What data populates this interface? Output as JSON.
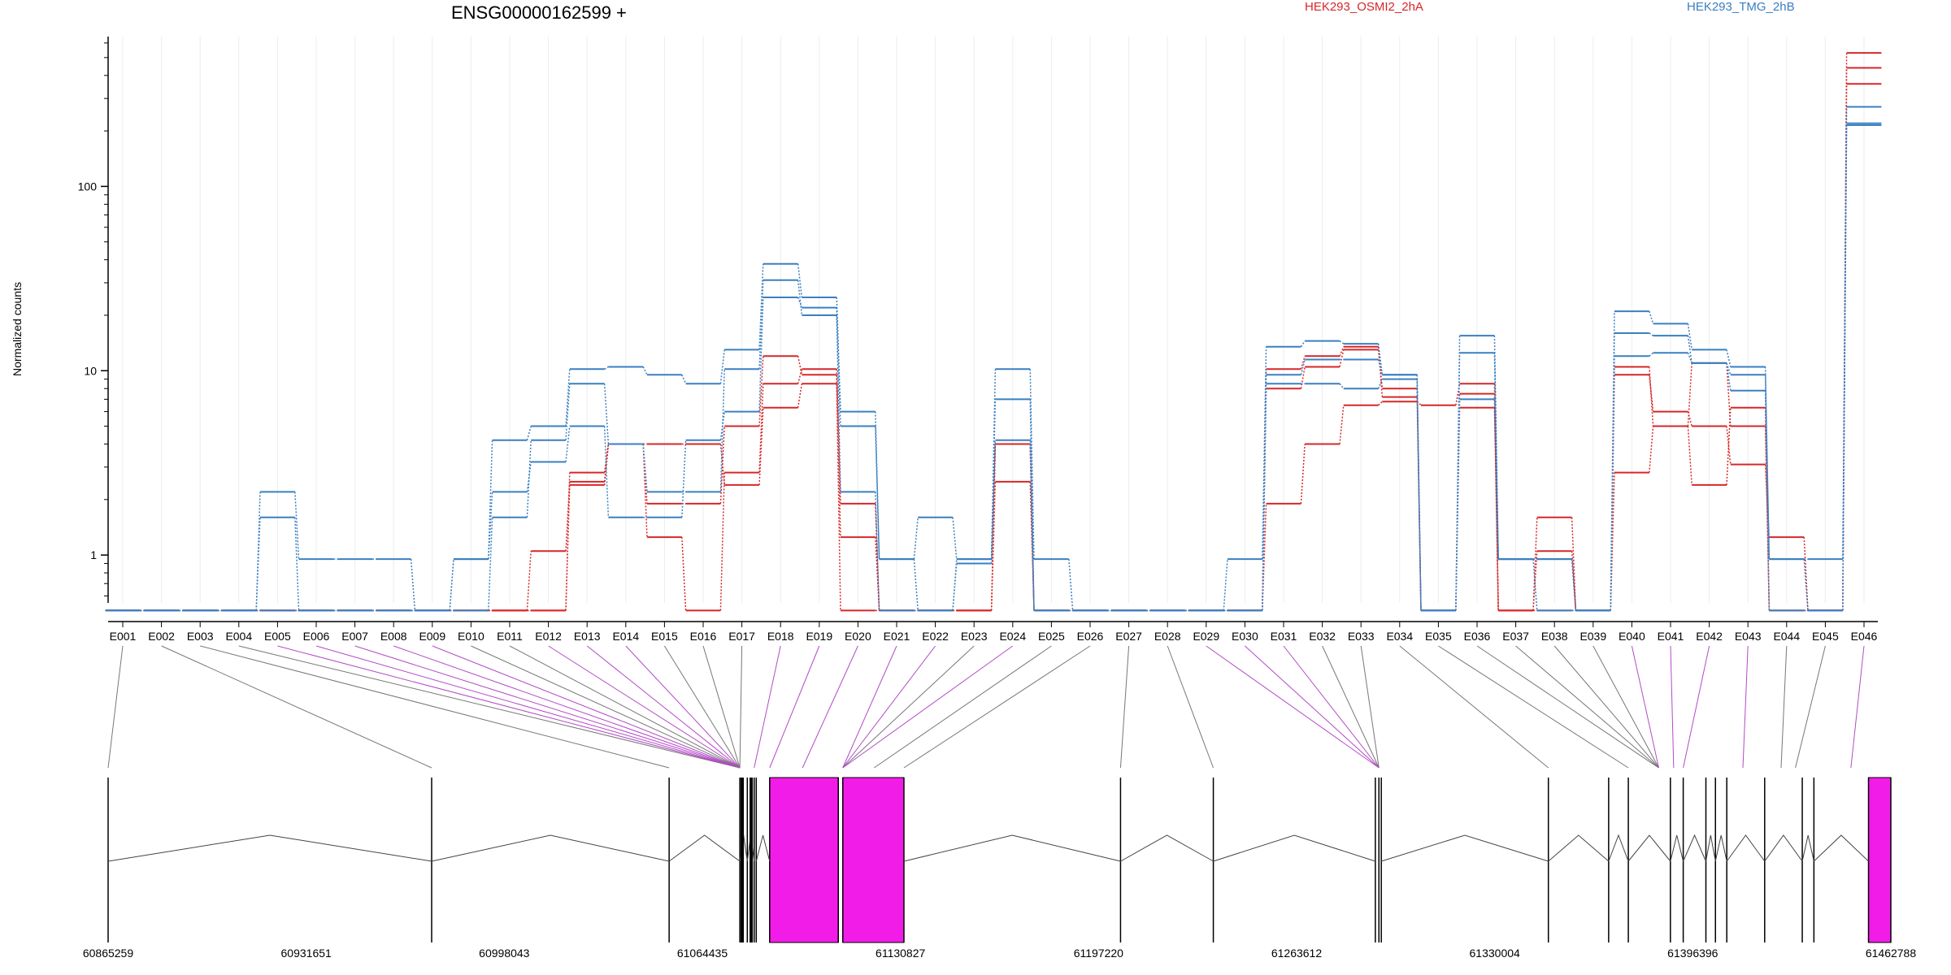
{
  "chart_data": {
    "type": "line",
    "title": "ENSG00000162599 +",
    "ylabel": "Normalized counts",
    "yscale": "log",
    "ylim": [
      0.5,
      650
    ],
    "yticks": [
      1,
      10,
      100
    ],
    "ytick_labels": [
      "1",
      "10",
      "100"
    ],
    "categories": [
      "E001",
      "E002",
      "E003",
      "E004",
      "E005",
      "E006",
      "E007",
      "E008",
      "E009",
      "E010",
      "E011",
      "E012",
      "E013",
      "E014",
      "E015",
      "E016",
      "E017",
      "E018",
      "E019",
      "E020",
      "E021",
      "E022",
      "E023",
      "E024",
      "E025",
      "E026",
      "E027",
      "E028",
      "E029",
      "E030",
      "E031",
      "E032",
      "E033",
      "E034",
      "E035",
      "E036",
      "E037",
      "E038",
      "E039",
      "E040",
      "E041",
      "E042",
      "E043",
      "E044",
      "E045",
      "E046"
    ],
    "legend": [
      {
        "name": "HEK293_OSMI2_2hA",
        "color": "#d62728"
      },
      {
        "name": "HEK293_TMG_2hB",
        "color": "#3a7fc0"
      }
    ],
    "series": [
      {
        "group": "HEK293_OSMI2_2hA",
        "color": "#d62728",
        "values": [
          0.5,
          0.5,
          0.5,
          0.5,
          0.5,
          0.5,
          0.5,
          0.5,
          0.5,
          0.5,
          0.5,
          1.05,
          2.5,
          4.0,
          1.25,
          0.5,
          2.8,
          8.5,
          10.2,
          1.9,
          0.5,
          0.5,
          0.5,
          4.0,
          0.5,
          0.5,
          0.5,
          0.5,
          0.5,
          0.5,
          1.9,
          4.0,
          6.5,
          6.8,
          6.5,
          8.5,
          0.5,
          1.05,
          0.5,
          9.5,
          6.0,
          5.0,
          3.1,
          1.25,
          0.5,
          360
        ]
      },
      {
        "group": "HEK293_OSMI2_2hA",
        "color": "#d62728",
        "values": [
          0.5,
          0.5,
          0.5,
          0.5,
          0.5,
          0.5,
          0.5,
          0.5,
          0.5,
          0.5,
          0.5,
          0.5,
          2.8,
          4.0,
          1.9,
          1.9,
          5.0,
          12.0,
          9.5,
          1.25,
          0.5,
          0.5,
          0.5,
          2.5,
          0.5,
          0.5,
          0.5,
          0.5,
          0.5,
          0.5,
          10.2,
          12.0,
          13.5,
          7.2,
          0.5,
          7.5,
          0.5,
          0.5,
          0.5,
          2.8,
          5.0,
          2.4,
          6.3,
          0.5,
          0.5,
          530
        ]
      },
      {
        "group": "HEK293_OSMI2_2hA",
        "color": "#d62728",
        "values": [
          0.5,
          0.5,
          0.5,
          0.5,
          0.5,
          0.5,
          0.5,
          0.5,
          0.5,
          0.5,
          0.5,
          0.5,
          2.4,
          4.0,
          4.0,
          4.0,
          2.4,
          6.3,
          8.5,
          0.5,
          0.5,
          0.5,
          0.5,
          4.0,
          0.5,
          0.5,
          0.5,
          0.5,
          0.5,
          0.5,
          8.0,
          10.5,
          13.0,
          8.0,
          0.5,
          6.3,
          0.5,
          1.6,
          0.5,
          10.5,
          5.0,
          11.0,
          5.0,
          0.5,
          0.5,
          440
        ]
      },
      {
        "group": "HEK293_TMG_2hB",
        "color": "#3a7fc0",
        "values": [
          0.5,
          0.5,
          0.5,
          0.5,
          2.2,
          0.95,
          0.95,
          0.95,
          0.5,
          0.95,
          4.2,
          5.0,
          10.2,
          10.5,
          9.5,
          8.5,
          13.0,
          38.0,
          25.0,
          6.0,
          0.95,
          1.6,
          0.95,
          10.2,
          0.95,
          0.5,
          0.5,
          0.5,
          0.5,
          0.95,
          13.5,
          14.5,
          14.0,
          9.5,
          0.5,
          15.5,
          0.95,
          0.95,
          0.5,
          21.0,
          18.0,
          13.0,
          10.5,
          0.95,
          0.95,
          270
        ]
      },
      {
        "group": "HEK293_TMG_2hB",
        "color": "#3a7fc0",
        "values": [
          0.5,
          0.5,
          0.5,
          0.5,
          1.6,
          0.5,
          0.5,
          0.5,
          0.5,
          0.95,
          2.2,
          3.2,
          5.0,
          1.6,
          1.6,
          4.2,
          6.0,
          25.0,
          22.0,
          5.0,
          0.95,
          0.5,
          0.95,
          7.0,
          0.5,
          0.5,
          0.5,
          0.5,
          0.5,
          0.5,
          8.5,
          8.5,
          8.0,
          9.0,
          0.5,
          12.5,
          0.95,
          0.5,
          0.5,
          12.0,
          12.5,
          11.0,
          7.8,
          0.5,
          0.5,
          215
        ]
      },
      {
        "group": "HEK293_TMG_2hB",
        "color": "#3a7fc0",
        "values": [
          0.5,
          0.5,
          0.5,
          0.5,
          0.5,
          0.5,
          0.5,
          0.5,
          0.5,
          0.5,
          1.6,
          4.2,
          8.5,
          4.0,
          2.2,
          2.2,
          10.2,
          31.0,
          20.0,
          2.2,
          0.5,
          0.5,
          0.9,
          4.2,
          0.5,
          0.5,
          0.5,
          0.5,
          0.5,
          0.5,
          9.5,
          11.5,
          11.5,
          9.5,
          0.5,
          7.0,
          0.95,
          0.95,
          0.5,
          16.0,
          15.5,
          11.0,
          9.5,
          0.95,
          0.5,
          220
        ]
      }
    ],
    "gene_model": {
      "coordinate_ticks": [
        "60865259",
        "60931651",
        "60998043",
        "61064435",
        "61130827",
        "61197220",
        "61263612",
        "61330004",
        "61396396",
        "61462788"
      ],
      "x_range": [
        60865259,
        61462788
      ],
      "exon_boundaries": [
        60865259,
        60973700,
        61053300,
        61077000,
        61079500,
        61081800,
        61082500,
        61087000,
        61110000,
        61111500,
        61132000,
        61204600,
        61235700,
        61290000,
        61291200,
        61292000,
        61348000,
        61368200,
        61374800,
        61388900,
        61393200,
        61400800,
        61404000,
        61407800,
        61420500,
        61433100,
        61437000,
        61455300,
        61462788
      ],
      "highlighted_exons": [
        {
          "start": 61087000,
          "end": 61110000
        },
        {
          "start": 61111500,
          "end": 61132000
        },
        {
          "start": 61455300,
          "end": 61462788
        }
      ],
      "exon_targets": [
        60865259,
        60973700,
        61053300,
        61077000,
        61077000,
        61077000,
        61077000,
        61077000,
        61077000,
        61077000,
        61077000,
        61077000,
        61077000,
        61077000,
        61077000,
        61077000,
        61077000,
        61081800,
        61087000,
        61098000,
        61111500,
        61111500,
        61111500,
        61111500,
        61122000,
        61132000,
        61204600,
        61235700,
        61291200,
        61291200,
        61291200,
        61291200,
        61291200,
        61348000,
        61374800,
        61385000,
        61385000,
        61385000,
        61385000,
        61385000,
        61390000,
        61393200,
        61413200,
        61426000,
        61430800,
        61449400
      ],
      "highlighted_targets": [
        4,
        5,
        6,
        7,
        8,
        11,
        12,
        13,
        17,
        18,
        19,
        20,
        21,
        23,
        28,
        29,
        30,
        39,
        40,
        41,
        42,
        45
      ]
    }
  }
}
